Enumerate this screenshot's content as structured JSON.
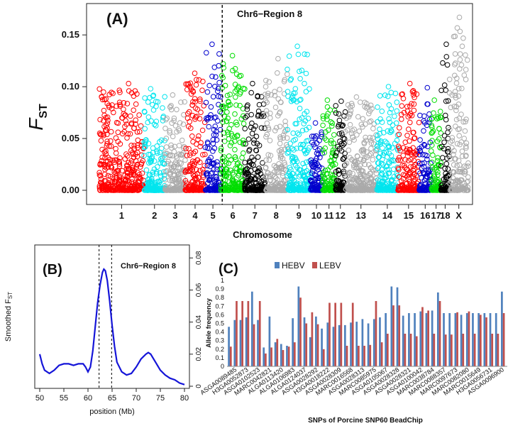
{
  "chart_data": [
    {
      "panel": "(A)",
      "type": "scatter",
      "annotation": "Chr6−Region 8",
      "ylabel": "F",
      "ylabel_sub": "ST",
      "xlabel": "Chromosome",
      "ylim": [
        0,
        0.17
      ],
      "yticks": [
        "0.00",
        "0.05",
        "0.10",
        "0.15"
      ],
      "ytick_values": [
        0,
        0.05,
        0.1,
        0.15
      ],
      "chromosomes": [
        {
          "label": "1",
          "length": 295,
          "color": "#ff0000",
          "peak": 0.103
        },
        {
          "label": "2",
          "length": 140,
          "color": "#00e5ee",
          "peak": 0.098
        },
        {
          "label": "3",
          "length": 133,
          "color": "#aaaaaa",
          "peak": 0.092
        },
        {
          "label": "4",
          "length": 131,
          "color": "#ff0000",
          "peak": 0.113
        },
        {
          "label": "5",
          "length": 105,
          "color": "#0000cd",
          "peak": 0.141
        },
        {
          "label": "6",
          "length": 158,
          "color": "#00dd00",
          "peak": 0.13
        },
        {
          "label": "7",
          "length": 134,
          "color": "#000000",
          "peak": 0.103
        },
        {
          "label": "8",
          "length": 148,
          "color": "#aaaaaa",
          "peak": 0.127
        },
        {
          "label": "9",
          "length": 153,
          "color": "#00e5ee",
          "peak": 0.139
        },
        {
          "label": "10",
          "length": 79,
          "color": "#0000cd",
          "peak": 0.065
        },
        {
          "label": "11",
          "length": 87,
          "color": "#00dd00",
          "peak": 0.087
        },
        {
          "label": "12",
          "length": 64,
          "color": "#000000",
          "peak": 0.086
        },
        {
          "label": "13",
          "length": 208,
          "color": "#aaaaaa",
          "peak": 0.09
        },
        {
          "label": "14",
          "length": 141,
          "color": "#00e5ee",
          "peak": 0.1
        },
        {
          "label": "15",
          "length": 140,
          "color": "#ff0000",
          "peak": 0.103
        },
        {
          "label": "16",
          "length": 80,
          "color": "#0000cd",
          "peak": 0.099
        },
        {
          "label": "17",
          "length": 64,
          "color": "#00dd00",
          "peak": 0.087
        },
        {
          "label": "18",
          "length": 56,
          "color": "#000000",
          "peak": 0.141
        },
        {
          "label": "X",
          "length": 125,
          "color": "#aaaaaa",
          "peak": 0.167
        }
      ],
      "region_line_chromosome": "6",
      "region_line_position_mb": 6
    },
    {
      "panel": "(B)",
      "type": "line",
      "annotation": "Chr6−Region 8",
      "ylabel": "Smoothed F",
      "ylabel_sub": "ST",
      "xlabel": "position (Mb)",
      "xlim": [
        50,
        80
      ],
      "ylim": [
        0,
        0.085
      ],
      "xticks": [
        "50",
        "55",
        "60",
        "65",
        "70",
        "75",
        "80"
      ],
      "xtick_values": [
        50,
        55,
        60,
        65,
        70,
        75,
        80
      ],
      "yticks": [
        "0",
        "0.02",
        "0.04",
        "0.06",
        "0.08"
      ],
      "ytick_values": [
        0,
        0.02,
        0.04,
        0.06,
        0.08
      ],
      "region_bounds": [
        62.3,
        64.9
      ],
      "line_color": "#1515d8",
      "x": [
        50,
        50.5,
        51,
        52,
        53,
        54,
        55,
        56,
        57,
        58,
        59,
        59.5,
        60,
        60.5,
        61,
        61.5,
        62,
        62.5,
        63,
        63.3,
        63.6,
        64,
        64.5,
        65,
        65.5,
        66,
        67,
        68,
        69,
        70,
        71,
        72,
        72.5,
        73,
        74,
        75,
        76,
        77,
        78,
        79,
        80
      ],
      "y": [
        0.02,
        0.014,
        0.01,
        0.008,
        0.01,
        0.013,
        0.014,
        0.014,
        0.013,
        0.014,
        0.014,
        0.012,
        0.009,
        0.012,
        0.022,
        0.037,
        0.052,
        0.063,
        0.071,
        0.073,
        0.072,
        0.066,
        0.053,
        0.038,
        0.025,
        0.015,
        0.009,
        0.007,
        0.008,
        0.012,
        0.017,
        0.02,
        0.021,
        0.02,
        0.015,
        0.01,
        0.007,
        0.005,
        0.004,
        0.002,
        0.001
      ]
    },
    {
      "panel": "(C)",
      "type": "bar",
      "xlabel": "SNPs of Porcine SNP60 BeadChip",
      "ylabel": "Allele frequency",
      "ylim": [
        0,
        1
      ],
      "yticks": [
        "0",
        "0.1",
        "0.2",
        "0.3",
        "0.4",
        "0.5",
        "0.6",
        "0.7",
        "0.8",
        "0.9",
        "1"
      ],
      "ytick_values": [
        0,
        0.1,
        0.2,
        0.3,
        0.4,
        0.5,
        0.6,
        0.7,
        0.8,
        0.9,
        1
      ],
      "legend": [
        {
          "name": "HEBV",
          "color": "#4f81bd"
        },
        {
          "name": "LEBV",
          "color": "#c0504d"
        }
      ],
      "category_labels": [
        "ASGA0089485",
        "H3GA0052873",
        "ASGA0102523",
        "MARC0042821",
        "ALGA0113420",
        "ALGA0106983",
        "ALGA0124037",
        "ASGA0028292",
        "H3GA0018222",
        "ASGA0028309",
        "MARC0016568",
        "ASGA0028313",
        "MARC0085975",
        "ASGA0105067",
        "ASGA0028328",
        "ASGA0028321",
        "ASGA0100042",
        "MARC0038784",
        "MARC0088357",
        "MARC0097673",
        "MARC0082080",
        "MARC0015649",
        "H3GA0056731",
        "ASGA0096900"
      ],
      "series": [
        {
          "name": "HEBV",
          "values": [
            0.46,
            0.54,
            0.54,
            0.57,
            0.87,
            0.54,
            0.22,
            0.58,
            0.28,
            0.26,
            0.24,
            0.56,
            0.93,
            0.57,
            0.34,
            0.58,
            0.44,
            0.51,
            0.46,
            0.48,
            0.48,
            0.51,
            0.52,
            0.55,
            0.5,
            0.55,
            0.57,
            0.62,
            0.93,
            0.92,
            0.59,
            0.62,
            0.62,
            0.64,
            0.62,
            0.65,
            0.86,
            0.62,
            0.62,
            0.62,
            0.6,
            0.62,
            0.62,
            0.62,
            0.62,
            0.62,
            0.62,
            0.87
          ]
        },
        {
          "name": "LEBV",
          "values": [
            0.23,
            0.76,
            0.76,
            0.76,
            0.49,
            0.76,
            0.15,
            0.22,
            0.32,
            0.19,
            0.23,
            0.28,
            0.8,
            0.5,
            0.63,
            0.49,
            0.2,
            0.74,
            0.74,
            0.74,
            0.24,
            0.74,
            0.24,
            0.24,
            0.25,
            0.76,
            0.28,
            0.38,
            0.71,
            0.71,
            0.38,
            0.38,
            0.35,
            0.69,
            0.65,
            0.38,
            0.76,
            0.37,
            0.37,
            0.63,
            0.38,
            0.64,
            0.38,
            0.6,
            0.57,
            0.38,
            0.38,
            0.62
          ]
        }
      ]
    }
  ]
}
